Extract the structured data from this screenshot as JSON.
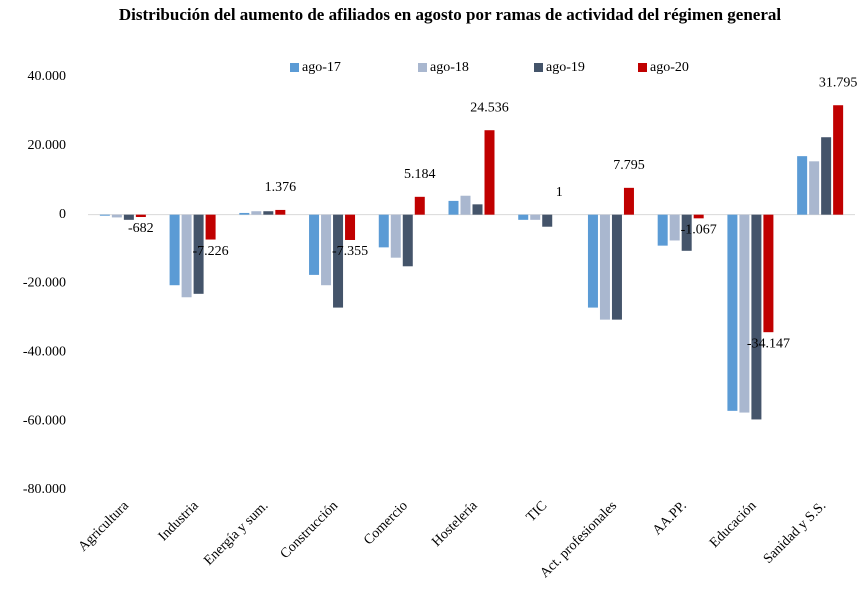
{
  "chart_data": {
    "type": "bar",
    "title": "Distribución del aumento de afiliados en agosto por ramas de actividad  del régimen general",
    "categories": [
      "Agricultura",
      "Industria",
      "Energía y sum.",
      "Construcción",
      "Comercio",
      "Hostelería",
      "TIC",
      "Act. profesionales",
      "AA.PP.",
      "Educación",
      "Sanidad y S.S."
    ],
    "series": [
      {
        "name": "ago-17",
        "color": "#5b9bd5",
        "values": [
          -300,
          -20500,
          500,
          -17500,
          -9500,
          4000,
          -1500,
          -27000,
          -9000,
          -57000,
          17000
        ]
      },
      {
        "name": "ago-18",
        "color": "#a9b7cf",
        "values": [
          -800,
          -24000,
          1000,
          -20500,
          -12500,
          5500,
          -1500,
          -30500,
          -7500,
          -57500,
          15500
        ]
      },
      {
        "name": "ago-19",
        "color": "#44546a",
        "values": [
          -1500,
          -23000,
          1000,
          -27000,
          -15000,
          3000,
          -3500,
          -30500,
          -10500,
          -59500,
          22500
        ]
      },
      {
        "name": "ago-20",
        "color": "#c00000",
        "values": [
          -682,
          -7226,
          1376,
          -7355,
          5184,
          24536,
          1,
          7795,
          -1067,
          -34147,
          31795
        ],
        "value_labels": [
          "-682",
          "-7.226",
          "1.376",
          "-7.355",
          "5.184",
          "24.536",
          "1",
          "7.795",
          "-1.067",
          "-34.147",
          "31.795"
        ]
      }
    ],
    "ylim": [
      -80000,
      40000
    ],
    "yticks": [
      {
        "value": -80000,
        "label": "-80.000"
      },
      {
        "value": -60000,
        "label": "-60.000"
      },
      {
        "value": -40000,
        "label": "-40.000"
      },
      {
        "value": -20000,
        "label": "-20.000"
      },
      0,
      {
        "value": 20000,
        "label": "20.000"
      },
      {
        "value": 40000,
        "label": "40.000"
      }
    ],
    "grid": false
  }
}
